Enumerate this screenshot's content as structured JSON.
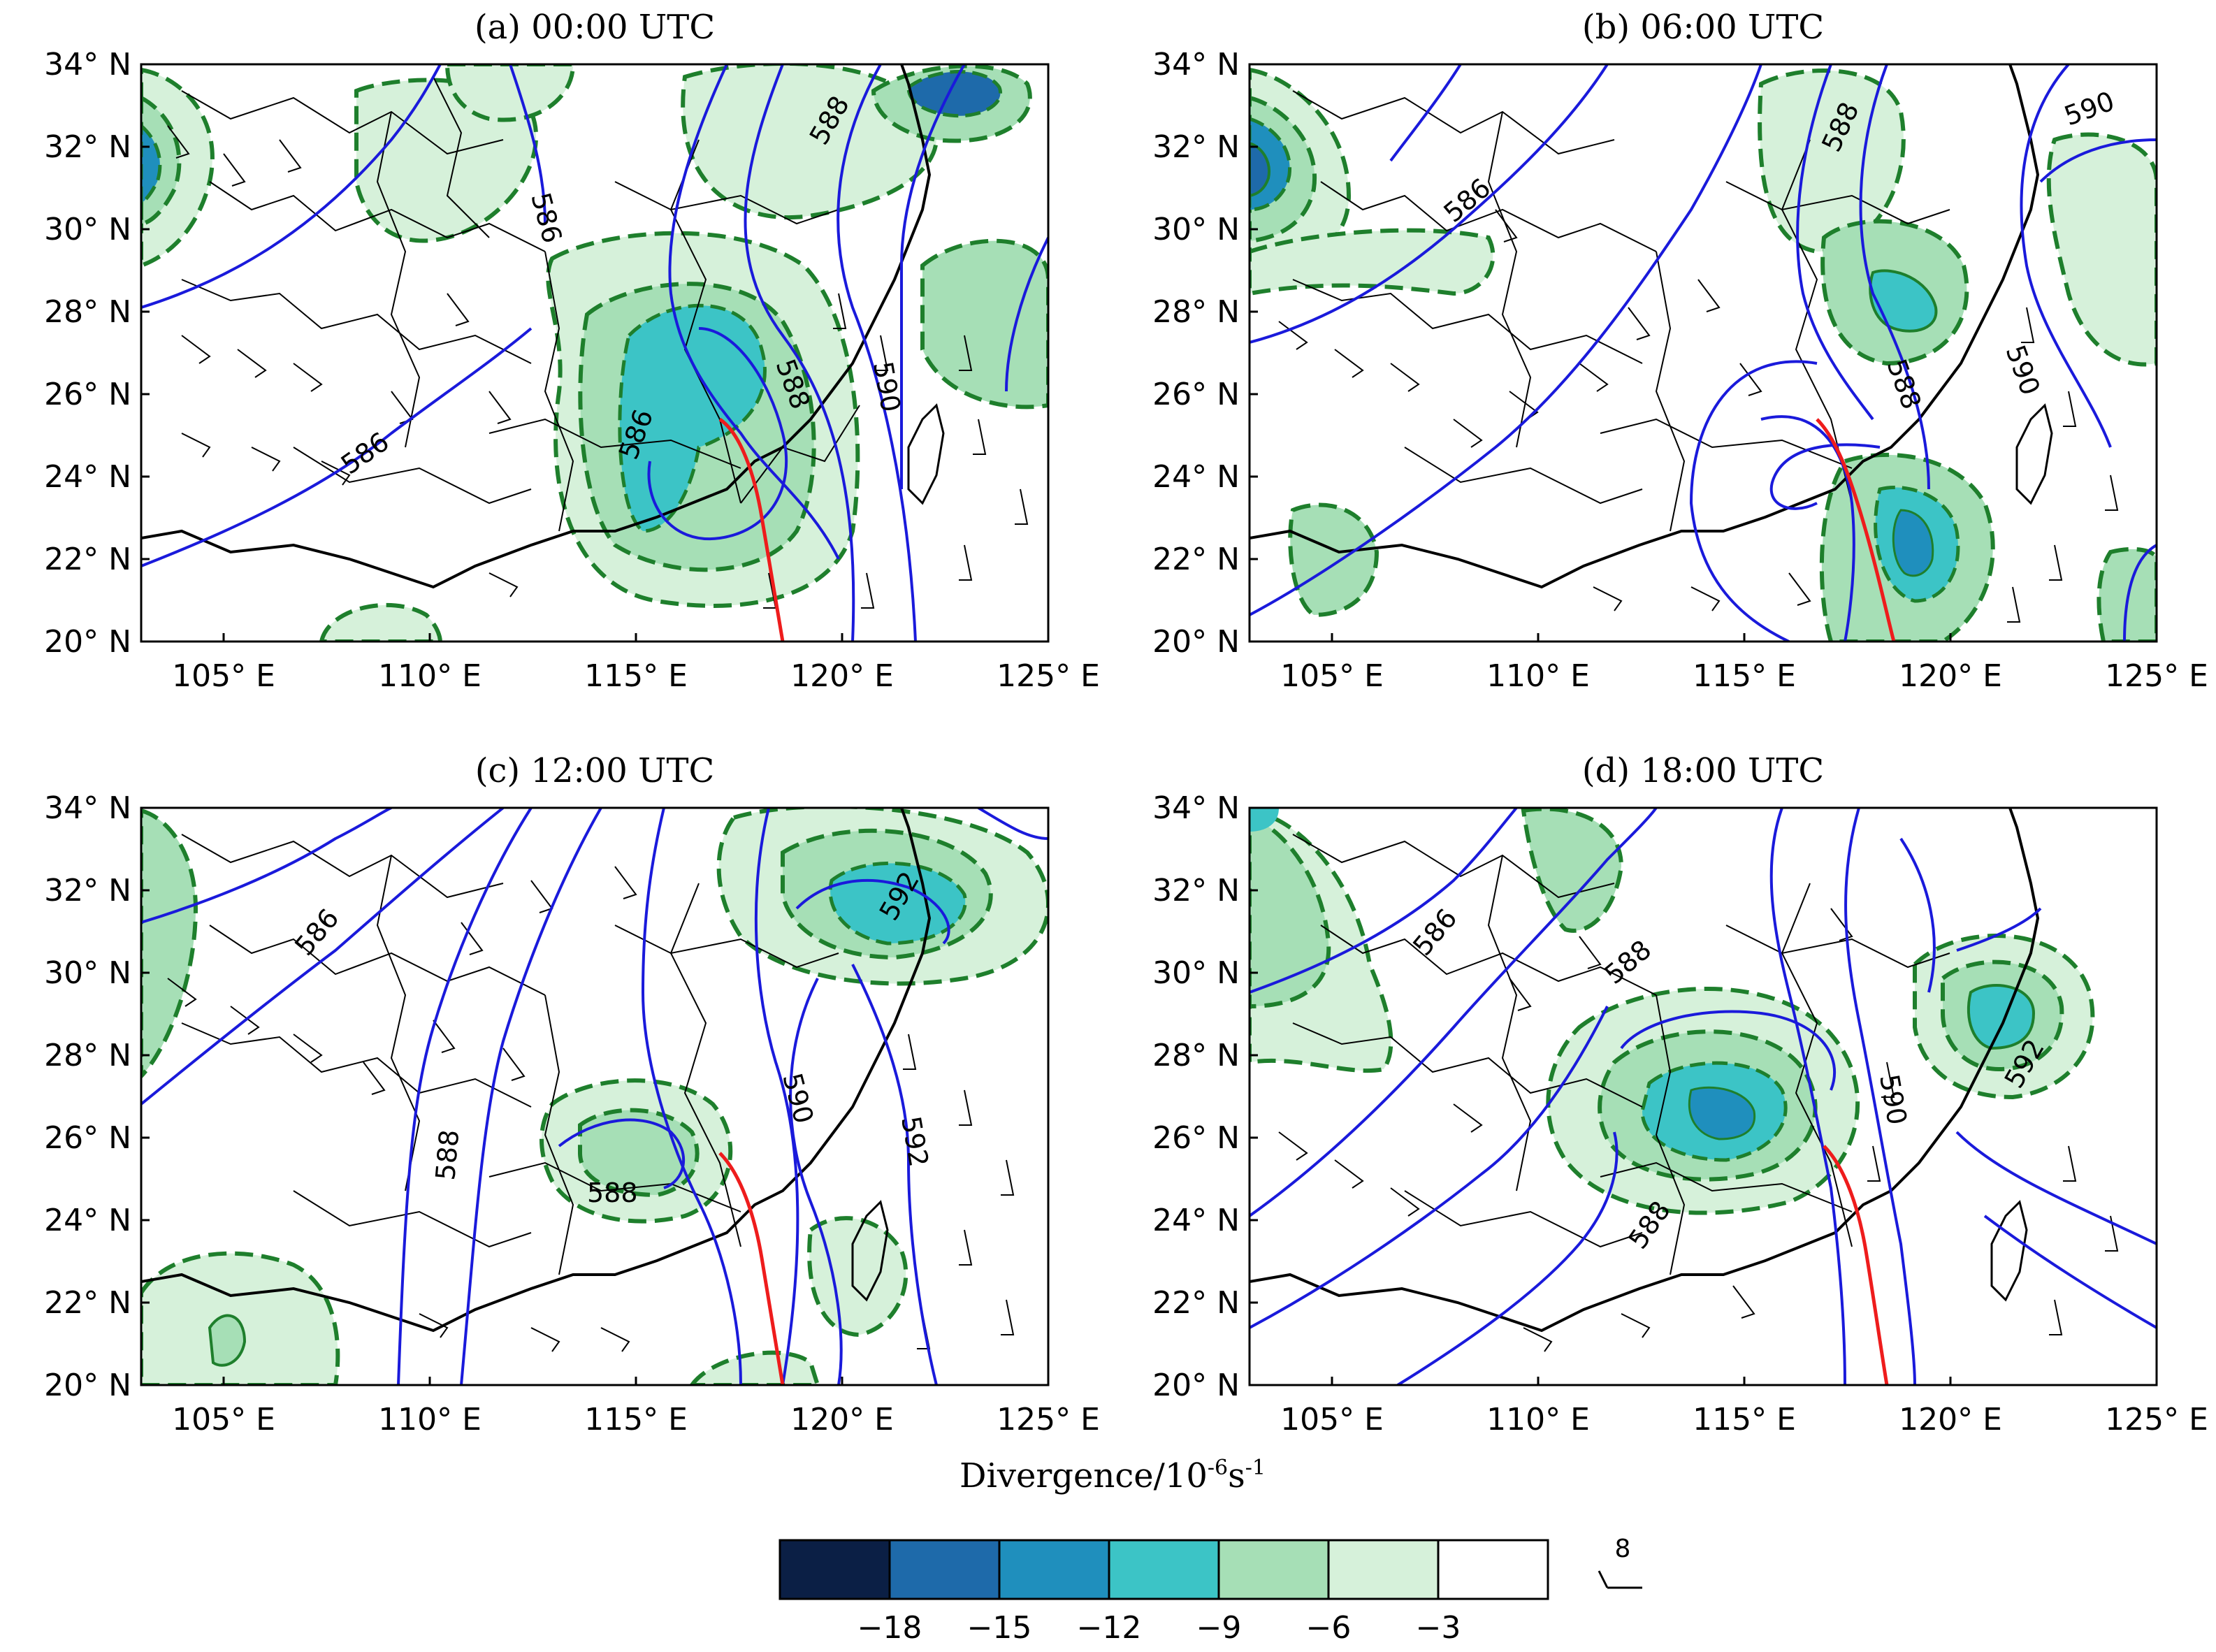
{
  "panels": [
    {
      "id": "a",
      "title": "(a) 00:00 UTC",
      "contour_labels": [
        "586",
        "586",
        "588",
        "588",
        "590",
        "586"
      ]
    },
    {
      "id": "b",
      "title": "(b) 06:00 UTC",
      "contour_labels": [
        "586",
        "588",
        "588",
        "590",
        "590"
      ]
    },
    {
      "id": "c",
      "title": "(c) 12:00 UTC",
      "contour_labels": [
        "586",
        "588",
        "588",
        "590",
        "592",
        "592"
      ]
    },
    {
      "id": "d",
      "title": "(d) 18:00 UTC",
      "contour_labels": [
        "586",
        "588",
        "588",
        "590",
        "592"
      ]
    }
  ],
  "axes": {
    "lat_ticks": [
      "34° N",
      "32° N",
      "30° N",
      "28° N",
      "26° N",
      "24° N",
      "22° N",
      "20° N"
    ],
    "lon_ticks": [
      "105° E",
      "110° E",
      "115° E",
      "120° E",
      "125° E"
    ],
    "lat_range": [
      20,
      34
    ],
    "lon_range": [
      103,
      125
    ]
  },
  "colorbar": {
    "title": "Divergence/10",
    "title_exp": "-6",
    "title_unit": "s",
    "title_unit_exp": "-1",
    "tick_labels": [
      "−18",
      "−15",
      "−12",
      "−9",
      "−6",
      "−3"
    ],
    "colors": [
      "#0b1f45",
      "#1e6aaa",
      "#1f8fbd",
      "#3cc4c6",
      "#a6dfb6",
      "#d6f1da",
      "#ffffff"
    ]
  },
  "wind_key": {
    "label": "8"
  },
  "colors": {
    "height_contour": "#1a1adb",
    "divergence_contour": "#1e7f2c",
    "front_line": "#ee1c1c",
    "border": "#000000"
  }
}
